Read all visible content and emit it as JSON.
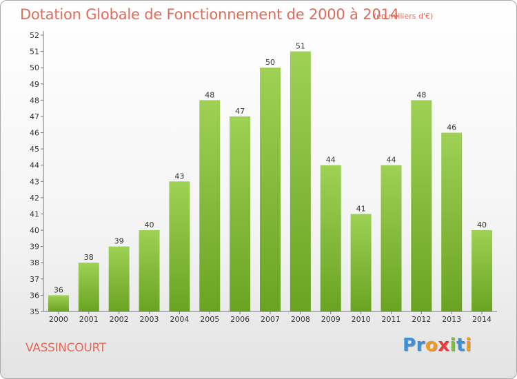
{
  "title": "Dotation Globale de Fonctionnement de 2000 à 2014",
  "subtitle": "(en milliers d'€)",
  "commune": "VASSINCOURT",
  "logo": {
    "letters": [
      "P",
      "r",
      "o",
      "x",
      "i",
      "t",
      "i"
    ],
    "colors": [
      "#3d8fd6",
      "#3d8fd6",
      "#f29a1f",
      "#e53b3b",
      "#7cbf3a",
      "#3d8fd6",
      "#f29a1f"
    ]
  },
  "chart_data": {
    "type": "bar",
    "title": "Dotation Globale de Fonctionnement de 2000 à 2014",
    "categories": [
      "2000",
      "2001",
      "2002",
      "2003",
      "2004",
      "2005",
      "2006",
      "2007",
      "2008",
      "2009",
      "2010",
      "2011",
      "2012",
      "2013",
      "2014"
    ],
    "values": [
      36,
      38,
      39,
      40,
      43,
      48,
      47,
      50,
      51,
      44,
      41,
      44,
      48,
      46,
      40
    ],
    "yticks": [
      "35",
      "36",
      "37",
      "38",
      "39",
      "40",
      "41",
      "42",
      "43",
      "44",
      "45",
      "46",
      "47",
      "48",
      "49",
      "50",
      "51",
      "52"
    ],
    "ylim": [
      35,
      52
    ],
    "grid": false,
    "bar_color_top": "#9ed155",
    "bar_color_bottom": "#6aa322"
  }
}
